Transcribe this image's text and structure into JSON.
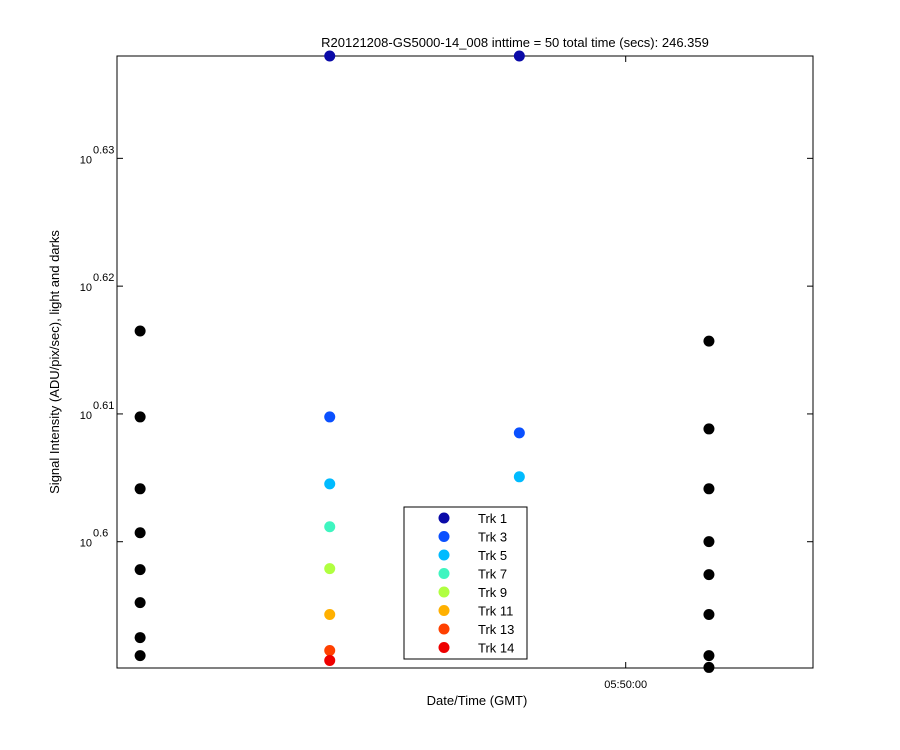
{
  "chart_data": {
    "type": "scatter",
    "title": "R20121208-GS5000-14_008 inttime = 50 total time (secs): 246.359",
    "x_label": "Date/Time (GMT)",
    "y_label": "Signal Intensity (ADU/pix/sec), light and darks",
    "log_y": true,
    "grid": false,
    "legend_position": "bottom",
    "x": [
      20790,
      20872,
      20954,
      21036
    ],
    "xlim": [
      20780,
      21081
    ],
    "xticks": [
      {
        "value": 21000,
        "label": "05:50:00"
      }
    ],
    "ylim": [
      3.8915,
      4.3452
    ],
    "yticks": [
      {
        "value": 3.98107,
        "label": "10^0.6"
      },
      {
        "value": 4.0738,
        "label": "10^0.61"
      },
      {
        "value": 4.16869,
        "label": "10^0.62"
      },
      {
        "value": 4.2658,
        "label": "10^0.63"
      }
    ],
    "series": [
      {
        "color": "#000000",
        "x": [
          20790,
          20790,
          20790,
          20790,
          20790,
          20790,
          20790,
          20790,
          21036,
          21036,
          21036,
          21036,
          21036,
          21036,
          21036,
          21036
        ],
        "values": [
          4.1351,
          4.0716,
          4.0192,
          3.9875,
          3.9611,
          3.9376,
          3.9129,
          3.9002,
          4.1276,
          4.0628,
          4.0192,
          3.9811,
          3.9575,
          3.9292,
          3.9002,
          3.8919
        ]
      },
      {
        "name": "Trk 1",
        "color": "#0a0aa8",
        "values": [
          null,
          4.3452,
          4.3452,
          null
        ]
      },
      {
        "name": "Trk 3",
        "color": "#0a50ff",
        "values": [
          null,
          4.0716,
          4.0599,
          null
        ]
      },
      {
        "name": "Trk 5",
        "color": "#00bbff",
        "values": [
          null,
          4.0228,
          4.0279,
          null
        ]
      },
      {
        "name": "Trk 7",
        "color": "#3ff5c0",
        "values": [
          null,
          3.9918,
          null,
          null
        ]
      },
      {
        "name": "Trk 9",
        "color": "#b0ff40",
        "values": [
          null,
          3.9618,
          null,
          null
        ]
      },
      {
        "name": "Trk 11",
        "color": "#ffb000",
        "values": [
          null,
          3.9292,
          null,
          null
        ]
      },
      {
        "name": "Trk 13",
        "color": "#ff4000",
        "values": [
          null,
          3.9038,
          null,
          null
        ]
      },
      {
        "name": "Trk 14",
        "color": "#ee0000",
        "values": [
          null,
          3.8968,
          null,
          null
        ]
      }
    ]
  }
}
